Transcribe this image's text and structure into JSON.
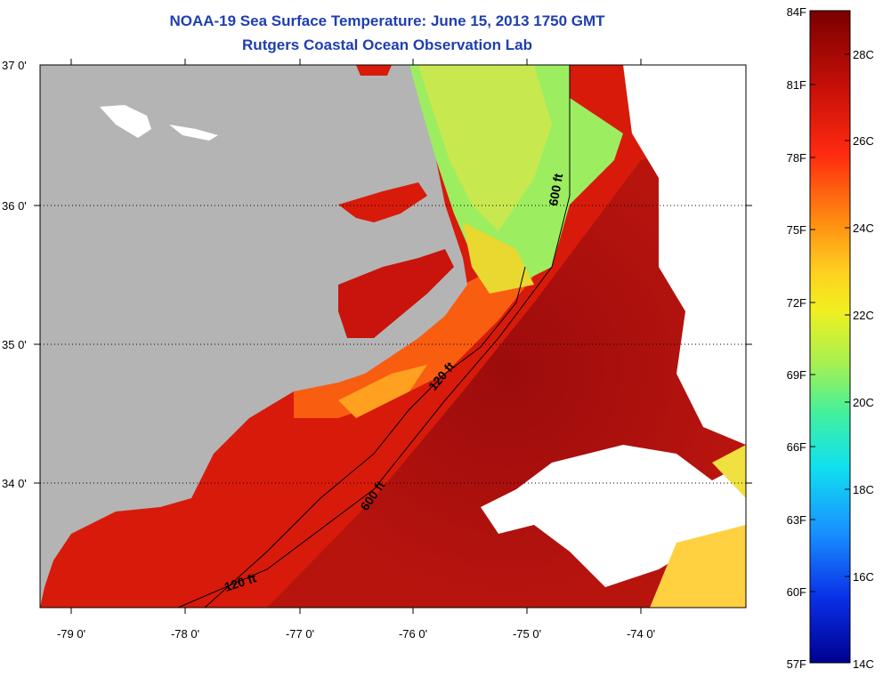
{
  "title_line1": "NOAA-19 Sea Surface Temperature:  June 15, 2013 1750 GMT",
  "title_line2": "Rutgers Coastal Ocean Observation Lab",
  "map": {
    "lon_labels": [
      "-79 0'",
      "-78 0'",
      "-77 0'",
      "-76 0'",
      "-75 0'",
      "-74 0'"
    ],
    "lat_labels": [
      "37 0'",
      "36 0'",
      "35 0'",
      "34 0'"
    ],
    "depth_labels": [
      "600 ft",
      "120 ft",
      "600 ft",
      "120 ft"
    ],
    "colors": {
      "land": "#b4b4b4",
      "cloud": "#ffffff",
      "sst_warm": "#d81a0a",
      "sst_hot": "#a00e0e",
      "sst_mid": "#ff8a10",
      "sst_cool": "#8ae870"
    }
  },
  "colorbar": {
    "f_labels": [
      "84F",
      "81F",
      "78F",
      "75F",
      "72F",
      "69F",
      "66F",
      "63F",
      "60F",
      "57F"
    ],
    "c_labels": [
      "28C",
      "26C",
      "24C",
      "22C",
      "20C",
      "18C",
      "16C",
      "14C"
    ],
    "range_f": [
      57,
      84
    ],
    "range_c": [
      14,
      29
    ]
  }
}
